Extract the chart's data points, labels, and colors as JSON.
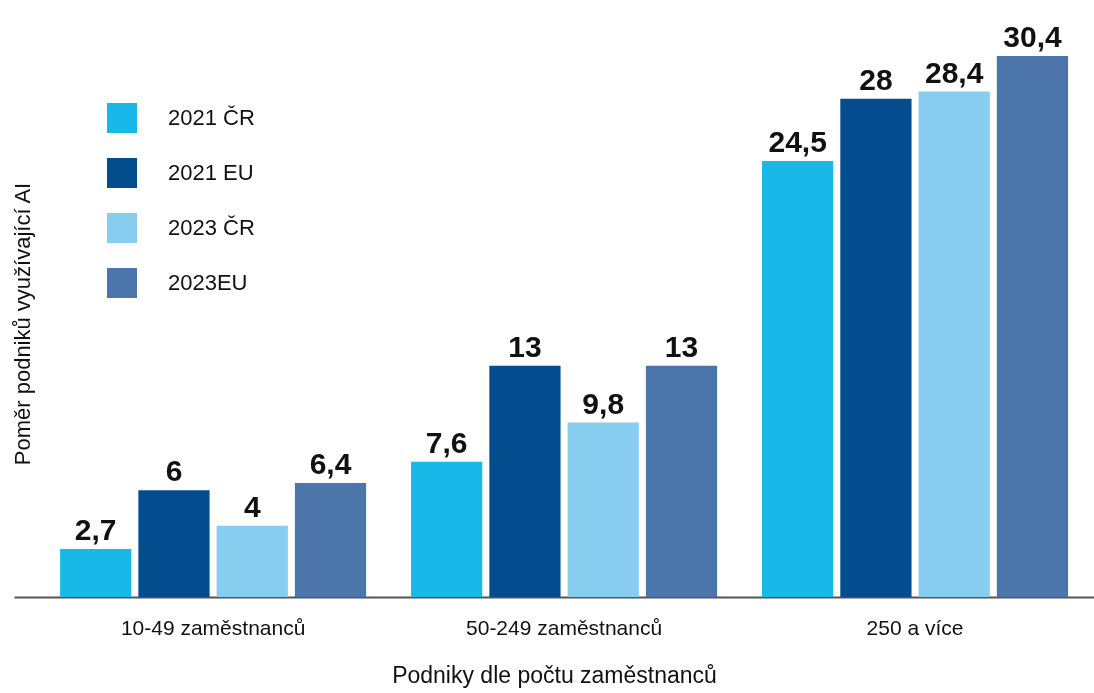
{
  "chart_data": {
    "type": "bar",
    "xlabel": "Podniky dle počtu zaměstnanců",
    "ylabel": "Poměr podniků využívající AI",
    "categories": [
      "10-49 zaměstnanců",
      "50-249 zaměstnanců",
      "250 a více"
    ],
    "series": [
      {
        "name": "2021 ČR",
        "color": "#18b9e8",
        "values": [
          2.7,
          7.6,
          24.5
        ],
        "value_labels": [
          "2,7",
          "7,6",
          "24,5"
        ]
      },
      {
        "name": "2021 EU",
        "color": "#034d8f",
        "values": [
          6,
          13,
          28
        ],
        "value_labels": [
          "6",
          "13",
          "28"
        ]
      },
      {
        "name": "2023 ČR",
        "color": "#86cdef",
        "values": [
          4,
          9.8,
          28.4
        ],
        "value_labels": [
          "4",
          "9,8",
          "28,4"
        ]
      },
      {
        "name": "2023EU",
        "color": "#4b75ab",
        "values": [
          6.4,
          13,
          30.4
        ],
        "value_labels": [
          "6,4",
          "13",
          "30,4"
        ]
      }
    ],
    "legend": "top left",
    "tick_labels": "x"
  }
}
